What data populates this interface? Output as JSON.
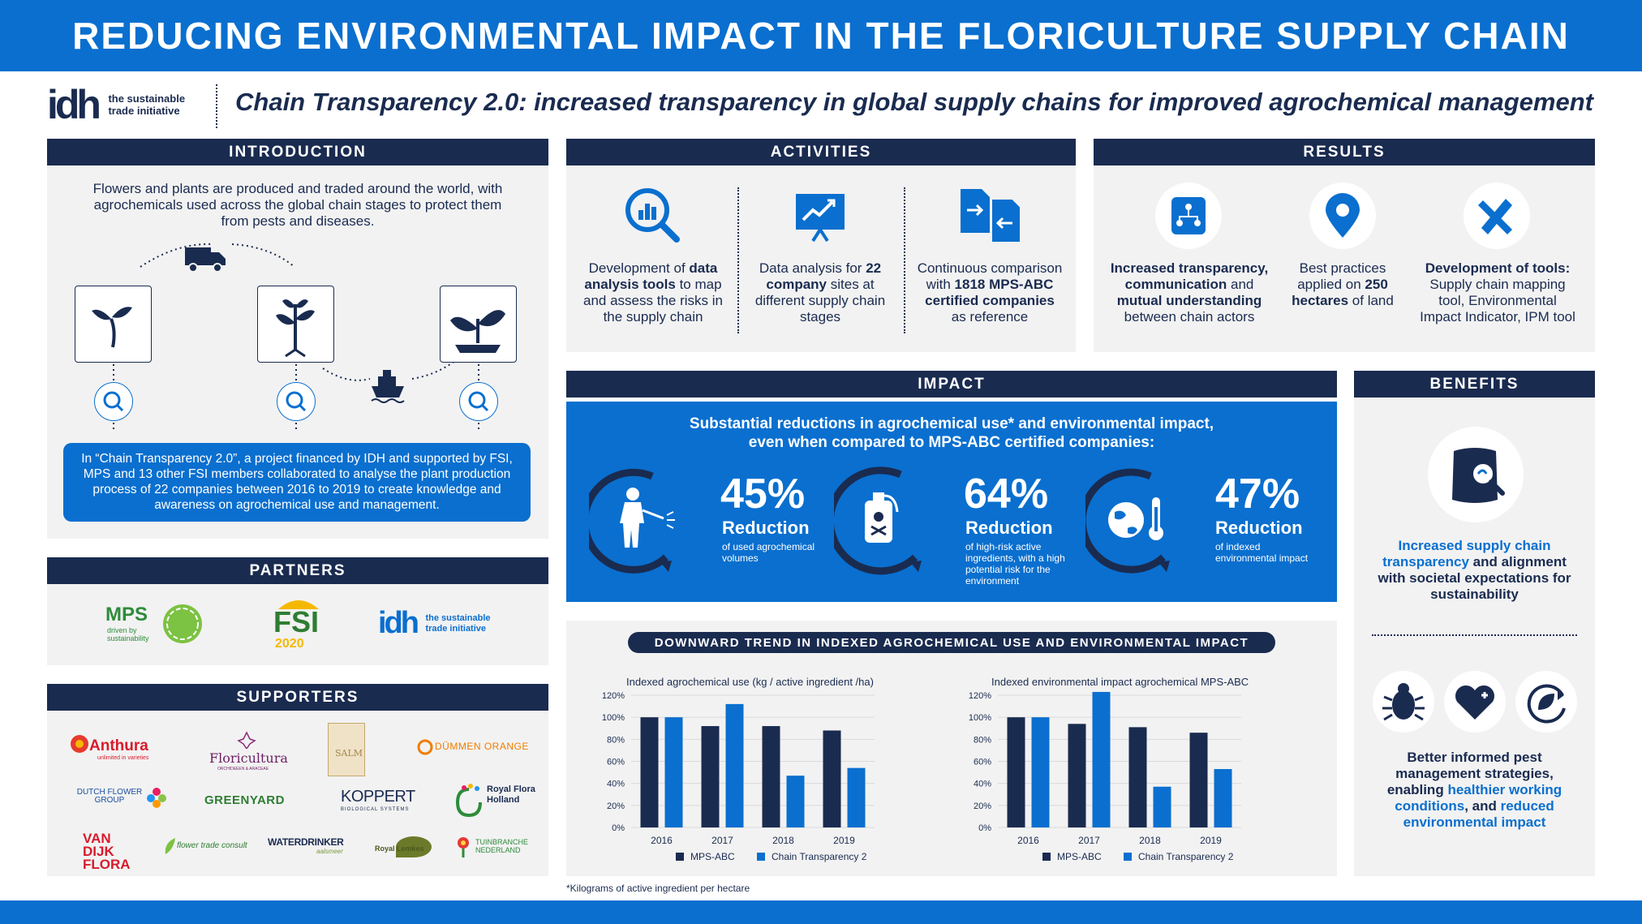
{
  "header": {
    "title": "REDUCING ENVIRONMENTAL IMPACT IN THE FLORICULTURE SUPPLY CHAIN",
    "subtitle": "Chain Transparency 2.0: increased transparency in global supply chains for improved agrochemical management",
    "logo_mark": "idh",
    "logo_text_1": "the sustainable",
    "logo_text_2": "trade initiative"
  },
  "introduction": {
    "heading": "INTRODUCTION",
    "text": "Flowers and plants are produced and traded around the world, with agrochemicals used across the global chain stages to protect them from pests and diseases.",
    "box_text": "In “Chain Transparency 2.0”, a project financed by IDH and supported by FSI, MPS and 13 other FSI members collaborated to analyse the plant production process of 22 companies between 2016 to 2019 to create knowledge and awareness on agrochemical use and management."
  },
  "partners": {
    "heading": "PARTNERS",
    "mps": "MPS",
    "mps_sub_1": "driven by",
    "mps_sub_2": "sustainability",
    "fsi": "FSI",
    "fsi_year": "2020",
    "idh": "idh",
    "idh_text_1": "the sustainable",
    "idh_text_2": "trade initiative"
  },
  "supporters": {
    "heading": "SUPPORTERS",
    "logos": [
      "Anthura",
      "Floricultura",
      "SALM",
      "DÜMMEN ORANGE",
      "DUTCH FLOWER GROUP",
      "GREENYARD",
      "KOPPERT",
      "Royal Flora Holland",
      "VAN DIJK FLORA",
      "flower trade consult",
      "WATERDRINKER",
      "Royal Lemkes",
      "TUINBRANCHE NEDERLAND"
    ],
    "anthura_sub": "unlimited in varieties",
    "floricultura_sub": "ORCHIDEEEN & ARACEAE",
    "koppert_sub": "BIOLOGICAL SYSTEMS",
    "waterdrinker_sub": "aalsmeer"
  },
  "activities": {
    "heading": "ACTIVITIES",
    "items": [
      {
        "icon": "magnifier-chart-icon",
        "t1": "Development of ",
        "b1": "data analysis tools",
        "t2": " to map and assess the risks in the supply chain"
      },
      {
        "icon": "presentation-chart-icon",
        "t1": "Data analysis for ",
        "b1": "22 company",
        "t2": " sites at different supply chain stages"
      },
      {
        "icon": "document-compare-icon",
        "t1": "Continuous comparison with ",
        "b1": "1818 MPS-ABC certified companies",
        "t2": " as reference"
      }
    ]
  },
  "results": {
    "heading": "RESULTS",
    "items": [
      {
        "icon": "network-icon",
        "b1": "Increased transparency,",
        "t1": " ",
        "b2": "communication",
        "t2": " and ",
        "b3": "mutual understanding",
        "t3": " between chain actors"
      },
      {
        "icon": "location-pin-icon",
        "t1": "Best practices applied on ",
        "b1": "250 hectares",
        "t2": " of land"
      },
      {
        "icon": "tools-icon",
        "b1": "Development of tools:",
        "t1": " Supply chain mapping tool, Environmental Impact Indicator, IPM tool"
      }
    ]
  },
  "impact": {
    "heading": "IMPACT",
    "lead_1": "Substantial reductions in agrochemical use* and environmental impact,",
    "lead_2": "even when compared to MPS-ABC certified companies:",
    "stats": [
      {
        "icon": "sprayer-person-icon",
        "pct": "45%",
        "label": "Reduction",
        "desc": "of used agrochemical volumes",
        "value": 45
      },
      {
        "icon": "poison-bottle-icon",
        "pct": "64%",
        "label": "Reduction",
        "desc": "of high-risk active ingredients, with a high potential risk for the environment",
        "value": 64
      },
      {
        "icon": "globe-thermometer-icon",
        "pct": "47%",
        "label": "Reduction",
        "desc": "of indexed environmental impact",
        "value": 47
      }
    ]
  },
  "benefits": {
    "heading": "BENEFITS",
    "text1_hl": "Increased supply chain transparency",
    "text1_rest": " and alignment with societal expectations for sustainability",
    "text2_a": "Better informed pest management strategies, enabling ",
    "text2_hl1": "healthier working conditions",
    "text2_b": ", and ",
    "text2_hl2": "reduced environmental impact"
  },
  "trend": {
    "heading": "DOWNWARD TREND IN INDEXED AGROCHEMICAL USE AND ENVIRONMENTAL IMPACT"
  },
  "footnote": "*Kilograms of active ingredient per hectare",
  "colors": {
    "navy": "#1a2b50",
    "blue": "#0a6fcf",
    "panel": "#f2f2f2"
  },
  "chart_data": [
    {
      "type": "bar",
      "title": "Indexed agrochemical use (kg / active ingredient /ha)",
      "categories": [
        "2016",
        "2017",
        "2018",
        "2019"
      ],
      "series": [
        {
          "name": "MPS-ABC",
          "values": [
            100,
            92,
            92,
            88
          ],
          "color": "#1a2b50"
        },
        {
          "name": "Chain Transparency 2",
          "values": [
            100,
            112,
            47,
            54
          ],
          "color": "#0a6fcf"
        }
      ],
      "yticks": [
        "0%",
        "20%",
        "40%",
        "60%",
        "80%",
        "100%",
        "120%"
      ],
      "ylim": [
        0,
        120
      ],
      "legend": "bottom"
    },
    {
      "type": "bar",
      "title": "Indexed environmental impact agrochemical MPS-ABC",
      "categories": [
        "2016",
        "2017",
        "2018",
        "2019"
      ],
      "series": [
        {
          "name": "MPS-ABC",
          "values": [
            100,
            94,
            91,
            86
          ],
          "color": "#1a2b50"
        },
        {
          "name": "Chain Transparency 2",
          "values": [
            100,
            123,
            37,
            53
          ],
          "color": "#0a6fcf"
        }
      ],
      "yticks": [
        "0%",
        "20%",
        "40%",
        "60%",
        "80%",
        "100%",
        "120%"
      ],
      "ylim": [
        0,
        120
      ],
      "legend": "bottom"
    }
  ]
}
